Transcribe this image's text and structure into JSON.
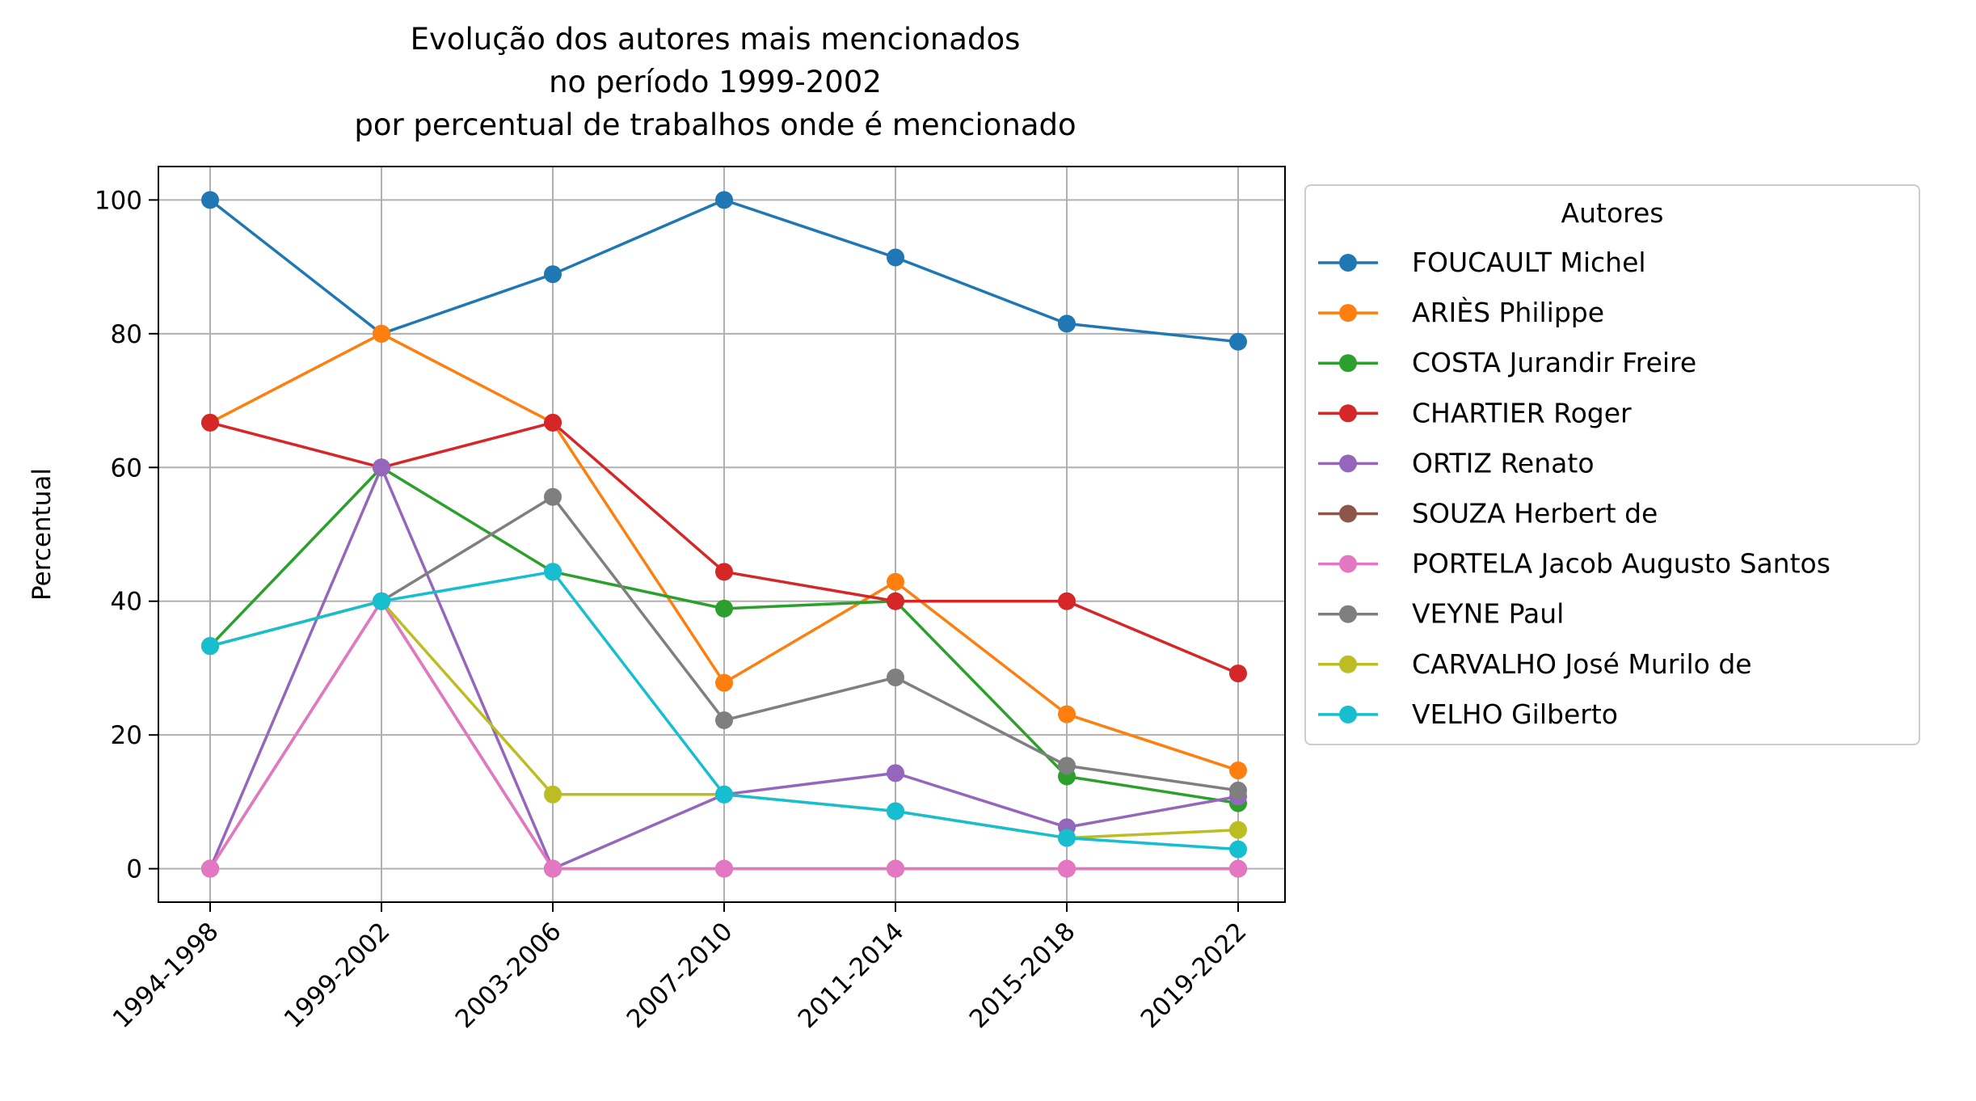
{
  "chart_data": {
    "type": "line",
    "title_lines": [
      "Evolução dos autores mais mencionados",
      "no período 1999-2002",
      "por percentual de trabalhos onde é mencionado"
    ],
    "xlabel": "",
    "ylabel": "Percentual",
    "categories": [
      "1994-1998",
      "1999-2002",
      "2003-2006",
      "2007-2010",
      "2011-2014",
      "2015-2018",
      "2019-2022"
    ],
    "ylim": [
      -5,
      105
    ],
    "yticks": [
      0,
      20,
      40,
      60,
      80,
      100
    ],
    "grid": true,
    "legend": {
      "title": "Autores",
      "placement": "outside-right"
    },
    "series": [
      {
        "name": "FOUCAULT Michel",
        "color": "#1f77b4",
        "values": [
          100,
          80,
          88.9,
          100,
          91.4,
          81.5,
          78.8
        ]
      },
      {
        "name": "ARIÈS Philippe",
        "color": "#ff7f0e",
        "values": [
          66.7,
          80,
          66.7,
          27.8,
          42.9,
          23.1,
          14.7
        ]
      },
      {
        "name": "COSTA Jurandir Freire",
        "color": "#2ca02c",
        "values": [
          33.3,
          60,
          44.4,
          38.9,
          40,
          13.8,
          9.8
        ]
      },
      {
        "name": "CHARTIER Roger",
        "color": "#d62728",
        "values": [
          66.7,
          60,
          66.7,
          44.4,
          40,
          40,
          29.2
        ]
      },
      {
        "name": "ORTIZ Renato",
        "color": "#9467bd",
        "values": [
          0,
          60,
          0,
          11.1,
          14.3,
          6.2,
          10.8
        ]
      },
      {
        "name": "SOUZA Herbert de",
        "color": "#8c564b",
        "values": [
          0,
          40,
          0,
          0,
          0,
          0,
          0
        ]
      },
      {
        "name": "PORTELA Jacob Augusto Santos",
        "color": "#e377c2",
        "values": [
          0,
          40,
          0,
          0,
          0,
          0,
          0
        ]
      },
      {
        "name": "VEYNE Paul",
        "color": "#7f7f7f",
        "values": [
          33.3,
          40,
          55.6,
          22.2,
          28.6,
          15.4,
          11.7
        ]
      },
      {
        "name": "CARVALHO José Murilo de",
        "color": "#bcbd22",
        "values": [
          33.3,
          40,
          11.1,
          11.1,
          8.6,
          4.6,
          5.8
        ]
      },
      {
        "name": "VELHO Gilberto",
        "color": "#17becf",
        "values": [
          33.3,
          40,
          44.4,
          11.1,
          8.6,
          4.6,
          2.9
        ]
      }
    ]
  }
}
